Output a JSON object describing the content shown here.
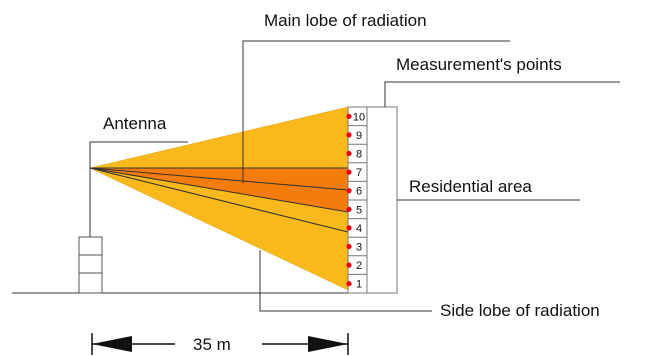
{
  "labels": {
    "main_lobe": "Main lobe of radiation",
    "measurement_points": "Measurement's points",
    "antenna": "Antenna",
    "residential_area": "Residential area",
    "side_lobe": "Side lobe of radiation",
    "distance": "35 m"
  },
  "floors": [
    "10",
    "9",
    "8",
    "7",
    "6",
    "5",
    "4",
    "3",
    "2",
    "1"
  ],
  "colors": {
    "side_lobe": "#f9b81b",
    "main_lobe": "#f47c0a",
    "measurement_point": "#e8001c",
    "lines": "#333333",
    "building": "#888888"
  }
}
